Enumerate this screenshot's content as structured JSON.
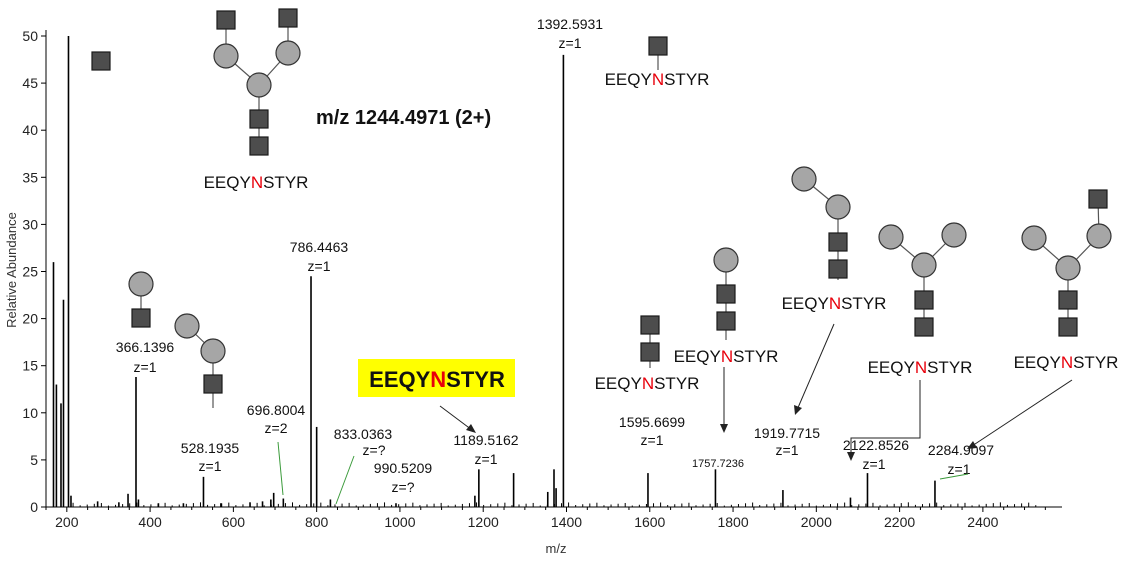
{
  "chart_data": {
    "type": "bar",
    "title": "m/z 1244.4971 (2+)",
    "xlabel": "m/z",
    "ylabel": "Relative Abundance",
    "xlim": [
      150,
      2590
    ],
    "ylim": [
      0,
      50
    ],
    "xticks": [
      200,
      400,
      600,
      800,
      1000,
      1200,
      1400,
      1600,
      1800,
      2000,
      2200,
      2400
    ],
    "yticks": [
      0,
      5,
      10,
      15,
      20,
      25,
      30,
      35,
      40,
      45,
      50
    ],
    "peaks": [
      {
        "mz": 168,
        "intensity": 26
      },
      {
        "mz": 175,
        "intensity": 13
      },
      {
        "mz": 186,
        "intensity": 11
      },
      {
        "mz": 192,
        "intensity": 22
      },
      {
        "mz": 204,
        "intensity": 50
      },
      {
        "mz": 210,
        "intensity": 1.2
      },
      {
        "mz": 274,
        "intensity": 0.6
      },
      {
        "mz": 325,
        "intensity": 0.5
      },
      {
        "mz": 347,
        "intensity": 1.4
      },
      {
        "mz": 366.1396,
        "intensity": 13.8
      },
      {
        "mz": 372,
        "intensity": 0.8
      },
      {
        "mz": 420,
        "intensity": 0.4
      },
      {
        "mz": 480,
        "intensity": 0.4
      },
      {
        "mz": 528.1935,
        "intensity": 3.2
      },
      {
        "mz": 570,
        "intensity": 0.4
      },
      {
        "mz": 640,
        "intensity": 0.5
      },
      {
        "mz": 670,
        "intensity": 0.6
      },
      {
        "mz": 690,
        "intensity": 0.8
      },
      {
        "mz": 696.8004,
        "intensity": 1.5
      },
      {
        "mz": 720,
        "intensity": 0.9
      },
      {
        "mz": 786.4463,
        "intensity": 24.5
      },
      {
        "mz": 800,
        "intensity": 8.5
      },
      {
        "mz": 833.0363,
        "intensity": 0.8
      },
      {
        "mz": 990.5209,
        "intensity": 0.4
      },
      {
        "mz": 1180,
        "intensity": 1.2
      },
      {
        "mz": 1189.5162,
        "intensity": 4
      },
      {
        "mz": 1273,
        "intensity": 3.6
      },
      {
        "mz": 1355,
        "intensity": 1.6
      },
      {
        "mz": 1370,
        "intensity": 4
      },
      {
        "mz": 1375,
        "intensity": 2
      },
      {
        "mz": 1392.5931,
        "intensity": 48
      },
      {
        "mz": 1595.6699,
        "intensity": 3.6
      },
      {
        "mz": 1757.7236,
        "intensity": 4
      },
      {
        "mz": 1919.7715,
        "intensity": 1.8
      },
      {
        "mz": 2082,
        "intensity": 1
      },
      {
        "mz": 2122.8526,
        "intensity": 3.6
      },
      {
        "mz": 2284.9097,
        "intensity": 2.8
      }
    ],
    "peak_labels": [
      {
        "mz": "366.1396",
        "z": "z=1"
      },
      {
        "mz": "528.1935",
        "z": "z=1"
      },
      {
        "mz": "696.8004",
        "z": "z=2"
      },
      {
        "mz": "786.4463",
        "z": "z=1"
      },
      {
        "mz": "833.0363",
        "z": "z=?"
      },
      {
        "mz": "990.5209",
        "z": "z=?"
      },
      {
        "mz": "1189.5162",
        "z": "z=1"
      },
      {
        "mz": "1392.5931",
        "z": "z=1"
      },
      {
        "mz": "1595.6699",
        "z": "z=1"
      },
      {
        "mz": "1757.7236",
        "z": ""
      },
      {
        "mz": "1919.7715",
        "z": "z=1"
      },
      {
        "mz": "2122.8526",
        "z": "z=1"
      },
      {
        "mz": "2284.9097",
        "z": "z=1"
      }
    ],
    "peptide": {
      "prefix": "EEQY",
      "site": "N",
      "suffix": "STYR"
    }
  },
  "colors": {
    "glyco_site": "#e8000b",
    "highlight": "#ffff00",
    "hexnac": "#4d4d4d",
    "hexose": "#a6a6a6"
  }
}
